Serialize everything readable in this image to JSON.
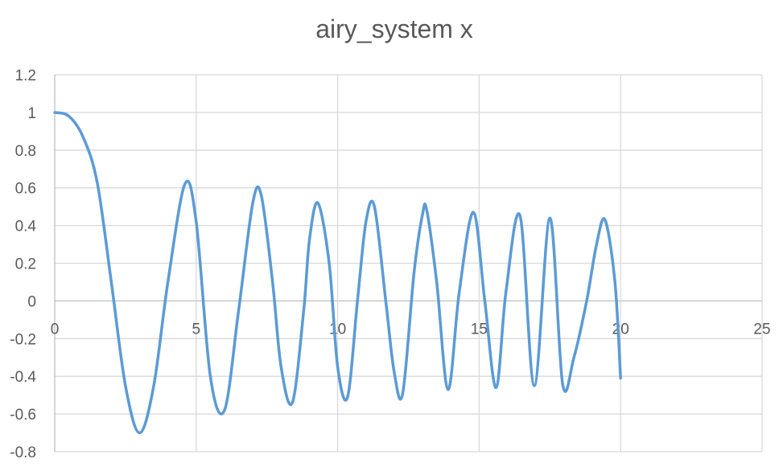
{
  "chart_data": {
    "type": "scatter",
    "title": "airy_system x",
    "xlabel": "",
    "ylabel": "",
    "xlim": [
      0,
      25
    ],
    "ylim": [
      -0.8,
      1.2
    ],
    "x_ticks": [
      "0",
      "5",
      "10",
      "15",
      "20",
      "25"
    ],
    "y_ticks": [
      "1.2",
      "1",
      "0.8",
      "0.6",
      "0.4",
      "0.2",
      "0",
      "-0.2",
      "-0.4",
      "-0.6",
      "-0.8"
    ],
    "grid": true,
    "legend": "none",
    "colors": {
      "series": "#5b9bd5",
      "grid": "#d9d9d9",
      "text": "#595959"
    },
    "series": [
      {
        "x": [
          0,
          0.5,
          1.0,
          1.5,
          2.0,
          2.5,
          3.0,
          3.5,
          4.0,
          4.6,
          5.0,
          5.5,
          6.0,
          6.5,
          7.0,
          7.3,
          7.7,
          8.0,
          8.4,
          8.8,
          9.0,
          9.3,
          9.7,
          10.0,
          10.35,
          10.7,
          11.0,
          11.3,
          11.7,
          12.0,
          12.3,
          12.7,
          13.0,
          13.15,
          13.5,
          13.9,
          14.3,
          14.8,
          15.2,
          15.6,
          15.95,
          16.45,
          16.95,
          17.5,
          17.95,
          18.35,
          18.8,
          19.15,
          19.45,
          19.8,
          20.0
        ],
        "y": [
          1.0,
          0.98,
          0.87,
          0.63,
          0.1,
          -0.45,
          -0.7,
          -0.45,
          0.1,
          0.62,
          0.42,
          -0.4,
          -0.58,
          -0.05,
          0.52,
          0.56,
          0.1,
          -0.35,
          -0.54,
          -0.05,
          0.32,
          0.52,
          0.2,
          -0.35,
          -0.51,
          0.0,
          0.42,
          0.5,
          0.0,
          -0.38,
          -0.49,
          0.15,
          0.46,
          0.48,
          0.1,
          -0.47,
          0.05,
          0.47,
          0.0,
          -0.46,
          0.05,
          0.45,
          -0.45,
          0.44,
          -0.44,
          -0.3,
          0.0,
          0.3,
          0.43,
          0.1,
          -0.41
        ]
      }
    ]
  }
}
